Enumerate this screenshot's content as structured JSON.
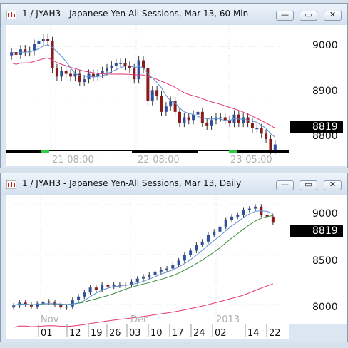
{
  "windows": [
    {
      "title": "1 / JYAH3 - Japanese Yen-All Sessions, Mar 13, 60 Min",
      "price_axis": [
        "9000",
        "8900",
        "8800"
      ],
      "last_price": "8819",
      "time_labels": [
        "21-08:00",
        "22-08:00",
        "23-05:00"
      ],
      "buttons": {
        "minimize": "—",
        "restore": "▭",
        "close": "✕"
      }
    },
    {
      "title": "1 / JYAH3 - Japanese Yen-All Sessions, Mar 13, Daily",
      "price_axis": [
        "9000",
        "8500",
        "8000"
      ],
      "last_price": "8819",
      "month_labels": [
        "Nov",
        "Dec",
        "2013"
      ],
      "day_labels": [
        "01",
        "12",
        "19",
        "26",
        "03",
        "10",
        "17",
        "24",
        "02",
        "14",
        "22"
      ],
      "buttons": {
        "minimize": "—",
        "restore": "▭",
        "close": "✕"
      }
    }
  ],
  "colors": {
    "up_candle": "#2f4f9a",
    "down_candle": "#8b1a1a",
    "ma_fast": "#5b8fd6",
    "ma_slow": "#e2357a",
    "ma_mid": "#3a8a3a",
    "last_price_bg": "#000000"
  },
  "chart_data": [
    {
      "type": "candlestick",
      "title": "1 / JYAH3 - Japanese Yen-All Sessions, Mar 13, 60 Min",
      "ylim": [
        8780,
        9040
      ],
      "y_ticks": [
        9000,
        8900,
        8800
      ],
      "series": [
        {
          "close": [
            8990,
            8985,
            8995,
            8990,
            8992,
            9005,
            9010,
            9015,
            9010,
            8960,
            8945,
            8955,
            8950,
            8945,
            8950,
            8935,
            8940,
            8950,
            8945,
            8950,
            8955,
            8960,
            8965,
            8970,
            8970,
            8965,
            8960,
            8940,
            8975,
            8960,
            8900,
            8920,
            8910,
            8880,
            8890,
            8900,
            8880,
            8860,
            8870,
            8865,
            8875,
            8880,
            8860,
            8855,
            8865,
            8870,
            8870,
            8865,
            8860,
            8875,
            8860,
            8870,
            8860,
            8850,
            8850,
            8840,
            8830,
            8810,
            8820
          ]
        }
      ]
    },
    {
      "type": "candlestick",
      "title": "1 / JYAH3 - Japanese Yen-All Sessions, Mar 13, Daily",
      "ylim": [
        7800,
        9100
      ],
      "y_ticks": [
        9000,
        8500,
        8000
      ],
      "series": [
        {
          "close": [
            7990,
            8020,
            8000,
            7980,
            8010,
            8030,
            8020,
            8000,
            7970,
            7980,
            8050,
            8080,
            8120,
            8170,
            8150,
            8200,
            8180,
            8200,
            8190,
            8200,
            8230,
            8260,
            8280,
            8300,
            8330,
            8350,
            8360,
            8400,
            8440,
            8500,
            8540,
            8600,
            8630,
            8700,
            8730,
            8780,
            8850,
            8880,
            8900,
            8950,
            8960,
            8980,
            8900,
            8880,
            8819
          ]
        }
      ]
    }
  ]
}
